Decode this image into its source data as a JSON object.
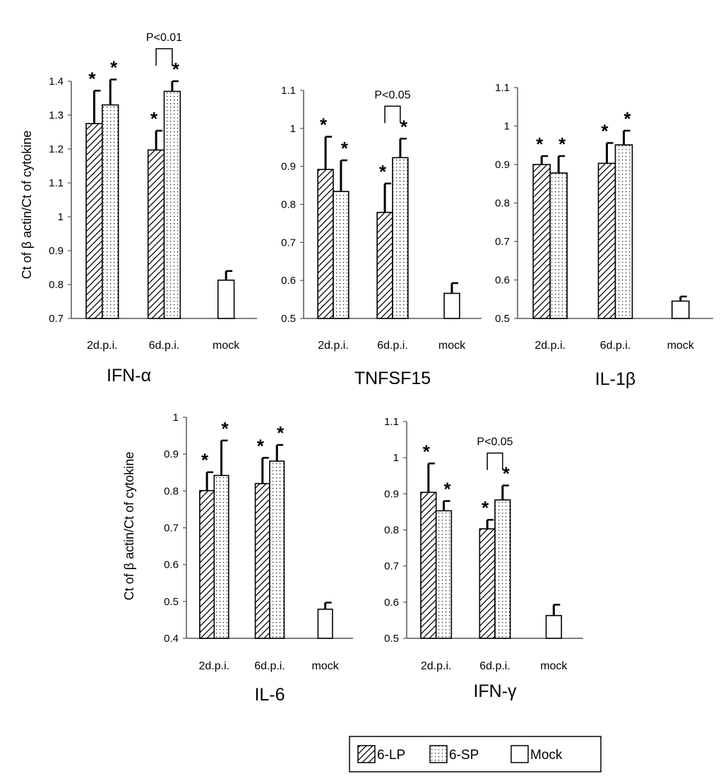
{
  "chart_data": [
    {
      "type": "bar",
      "title": "IFN-α",
      "ylabel": "Ct of β actin/Ct of cytokine",
      "ylim": [
        0.7,
        1.4
      ],
      "yticks": [
        0.7,
        0.8,
        0.9,
        1,
        1.1,
        1.2,
        1.3,
        1.4
      ],
      "yticklabels": [
        "0.7",
        "0.8",
        "0.9",
        "1",
        "1.1",
        "1.2",
        "1.3",
        "1.4"
      ],
      "categories": [
        "2d.p.i.",
        "6d.p.i.",
        "mock"
      ],
      "series": [
        {
          "name": "6-LP",
          "values": [
            1.275,
            1.197,
            null
          ],
          "errors": [
            0.097,
            0.057,
            null
          ],
          "stars": [
            true,
            true,
            false
          ]
        },
        {
          "name": "6-SP",
          "values": [
            1.33,
            1.37,
            null
          ],
          "errors": [
            0.075,
            0.03,
            null
          ],
          "stars": [
            true,
            true,
            false
          ]
        },
        {
          "name": "Mock",
          "values": [
            null,
            null,
            0.813
          ],
          "errors": [
            null,
            null,
            0.027
          ],
          "stars": [
            false,
            false,
            false
          ]
        }
      ],
      "significance": {
        "label": "P<0.01",
        "category": 1
      }
    },
    {
      "type": "bar",
      "title": "TNFSF15",
      "ylabel": "",
      "ylim": [
        0.5,
        1.1
      ],
      "yticks": [
        0.5,
        0.6,
        0.7,
        0.8,
        0.9,
        1,
        1.1
      ],
      "yticklabels": [
        "0.5",
        "0.6",
        "0.7",
        "0.8",
        "0.9",
        "1",
        "1.1"
      ],
      "categories": [
        "2d.p.i.",
        "6d.p.i.",
        "mock"
      ],
      "series": [
        {
          "name": "6-LP",
          "values": [
            0.892,
            0.779,
            null
          ],
          "errors": [
            0.086,
            0.076,
            null
          ],
          "stars": [
            true,
            true,
            false
          ]
        },
        {
          "name": "6-SP",
          "values": [
            0.834,
            0.923,
            null
          ],
          "errors": [
            0.082,
            0.05,
            null
          ],
          "stars": [
            true,
            true,
            false
          ]
        },
        {
          "name": "Mock",
          "values": [
            null,
            null,
            0.566
          ],
          "errors": [
            null,
            null,
            0.027
          ],
          "stars": [
            false,
            false,
            false
          ]
        }
      ],
      "significance": {
        "label": "P<0.05",
        "category": 1
      }
    },
    {
      "type": "bar",
      "title": "IL-1β",
      "ylabel": "",
      "ylim": [
        0.5,
        1.1
      ],
      "yticks": [
        0.5,
        0.6,
        0.7,
        0.8,
        0.9,
        1,
        1.1
      ],
      "yticklabels": [
        "0.5",
        "0.6",
        "0.7",
        "0.8",
        "0.9",
        "1",
        "1.1"
      ],
      "categories": [
        "2d.p.i.",
        "6d.p.i.",
        "mock"
      ],
      "series": [
        {
          "name": "6-LP",
          "values": [
            0.9,
            0.903,
            null
          ],
          "errors": [
            0.022,
            0.053,
            null
          ],
          "stars": [
            true,
            true,
            false
          ]
        },
        {
          "name": "6-SP",
          "values": [
            0.878,
            0.951,
            null
          ],
          "errors": [
            0.044,
            0.037,
            null
          ],
          "stars": [
            true,
            true,
            false
          ]
        },
        {
          "name": "Mock",
          "values": [
            null,
            null,
            0.545
          ],
          "errors": [
            null,
            null,
            0.012
          ],
          "stars": [
            false,
            false,
            false
          ]
        }
      ]
    },
    {
      "type": "bar",
      "title": "IL-6",
      "ylabel": "Ct of β actin/Ct of cytokine",
      "ylim": [
        0.4,
        1
      ],
      "yticks": [
        0.4,
        0.5,
        0.6,
        0.7,
        0.8,
        0.9,
        1
      ],
      "yticklabels": [
        "0.4",
        "0.5",
        "0.6",
        "0.7",
        "0.8",
        "0.9",
        "1"
      ],
      "categories": [
        "2d.p.i.",
        "6d.p.i.",
        "mock"
      ],
      "series": [
        {
          "name": "6-LP",
          "values": [
            0.801,
            0.82,
            null
          ],
          "errors": [
            0.05,
            0.07,
            null
          ],
          "stars": [
            true,
            true,
            false
          ]
        },
        {
          "name": "6-SP",
          "values": [
            0.842,
            0.881,
            null
          ],
          "errors": [
            0.095,
            0.044,
            null
          ],
          "stars": [
            true,
            true,
            false
          ]
        },
        {
          "name": "Mock",
          "values": [
            null,
            null,
            0.479
          ],
          "errors": [
            null,
            null,
            0.018
          ],
          "stars": [
            false,
            false,
            false
          ]
        }
      ]
    },
    {
      "type": "bar",
      "title": "IFN-γ",
      "ylabel": "",
      "ylim": [
        0.5,
        1.1
      ],
      "yticks": [
        0.5,
        0.6,
        0.7,
        0.8,
        0.9,
        1,
        1.1
      ],
      "yticklabels": [
        "0.5",
        "0.6",
        "0.7",
        "0.8",
        "0.9",
        "1",
        "1.1"
      ],
      "categories": [
        "2d.p.i.",
        "6d.p.i.",
        "mock"
      ],
      "series": [
        {
          "name": "6-LP",
          "values": [
            0.904,
            0.803,
            null
          ],
          "errors": [
            0.08,
            0.025,
            null
          ],
          "stars": [
            true,
            true,
            false
          ]
        },
        {
          "name": "6-SP",
          "values": [
            0.853,
            0.883,
            null
          ],
          "errors": [
            0.027,
            0.04,
            null
          ],
          "stars": [
            true,
            true,
            false
          ]
        },
        {
          "name": "Mock",
          "values": [
            null,
            null,
            0.563
          ],
          "errors": [
            null,
            null,
            0.03
          ],
          "stars": [
            false,
            false,
            false
          ]
        }
      ],
      "significance": {
        "label": "P<0.05",
        "category": 1
      }
    }
  ],
  "legend": {
    "placement": "bottom-right",
    "items": [
      {
        "label": "6-LP",
        "pattern": "hatch"
      },
      {
        "label": "6-SP",
        "pattern": "dots"
      },
      {
        "label": "Mock",
        "pattern": "blank"
      }
    ]
  },
  "significance_marker": "*",
  "colors": {
    "ink": "#000000",
    "background": "#ffffff",
    "mock_fill": "#ffffff"
  }
}
